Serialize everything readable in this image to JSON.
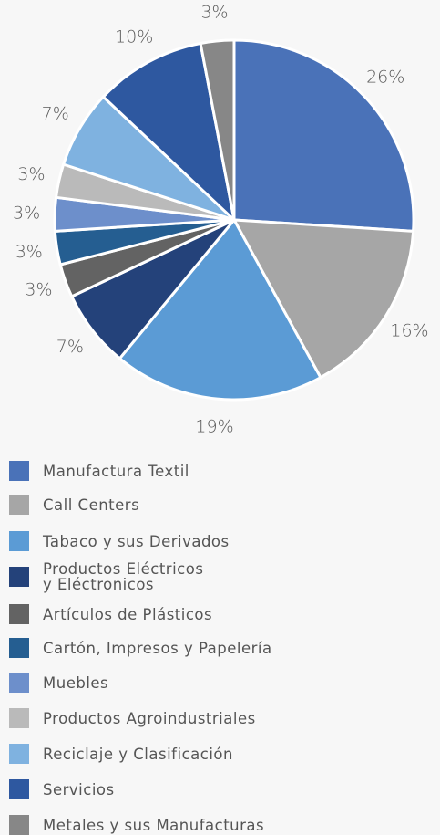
{
  "chart_data": {
    "type": "pie",
    "categories": [
      "Manufactura  Textil",
      "Call Centers",
      "Tabaco y sus Derivados",
      "Productos Eléctricos\ny Eléctronicos",
      "Artículos de Plásticos",
      "Cartón, Impresos y Papelería",
      "Muebles",
      "Productos Agroindustriales",
      "Reciclaje y Clasificación",
      "Servicios",
      "Metales y sus Manufacturas"
    ],
    "values": [
      26,
      16,
      19,
      7,
      3,
      3,
      3,
      3,
      7,
      10,
      3
    ],
    "value_labels": [
      "26%",
      "16%",
      "19%",
      "7%",
      "3%",
      "3%",
      "3%",
      "3%",
      "7%",
      "10%",
      "3%"
    ],
    "colors": [
      "#4a72b8",
      "#a6a6a6",
      "#5b9bd5",
      "#24427a",
      "#636363",
      "#255e91",
      "#6d8fcb",
      "#bababa",
      "#7fb2e0",
      "#2e58a0",
      "#878787"
    ],
    "legend": "bottom"
  }
}
